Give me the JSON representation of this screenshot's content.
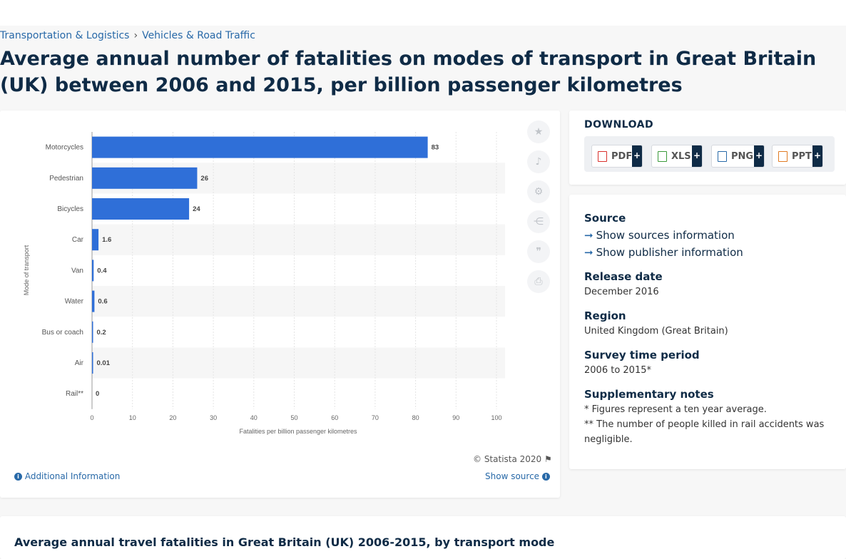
{
  "breadcrumb": {
    "item1": "Transportation & Logistics",
    "item2": "Vehicles & Road Traffic"
  },
  "page_title": "Average annual number of fatalities on modes of transport in Great Britain (UK) between 2006 and 2015, per billion passenger kilometres",
  "chart_data": {
    "type": "bar",
    "orientation": "horizontal",
    "categories": [
      "Motorcycles",
      "Pedestrian",
      "Bicycles",
      "Car",
      "Van",
      "Water",
      "Bus or coach",
      "Air",
      "Rail**"
    ],
    "values": [
      83,
      26,
      24,
      1.6,
      0.4,
      0.6,
      0.2,
      0.01,
      0
    ],
    "value_labels": [
      "83",
      "26",
      "24",
      "1.6",
      "0.4",
      "0.6",
      "0.2",
      "0.01",
      "0"
    ],
    "xlabel": "Fatalities per billion passenger kilometres",
    "ylabel": "Mode of transport",
    "xlim": [
      0,
      100
    ],
    "xticks": [
      0,
      10,
      20,
      30,
      40,
      50,
      60,
      70,
      80,
      90,
      100
    ],
    "grid": true,
    "bar_color": "#2f6fd8"
  },
  "chart_footer": {
    "copyright": "© Statista 2020",
    "additional_info": "Additional Information",
    "show_source": "Show source"
  },
  "tools": [
    "star-icon",
    "bell-icon",
    "gear-icon",
    "share-icon",
    "quote-icon",
    "print-icon"
  ],
  "download": {
    "title": "DOWNLOAD",
    "buttons": [
      {
        "label": "PDF",
        "color": "#d9302c"
      },
      {
        "label": "XLS",
        "color": "#3a9a3a"
      },
      {
        "label": "PNG",
        "color": "#2869a8"
      },
      {
        "label": "PPT",
        "color": "#e07b22"
      }
    ],
    "plus": "+"
  },
  "details": {
    "source_heading": "Source",
    "show_sources": "Show sources information",
    "show_publisher": "Show publisher information",
    "release_heading": "Release date",
    "release_value": "December 2016",
    "region_heading": "Region",
    "region_value": "United Kingdom (Great Britain)",
    "survey_heading": "Survey time period",
    "survey_value": "2006 to 2015*",
    "notes_heading": "Supplementary notes",
    "note1": "* Figures represent a ten year average.",
    "note2a": "** The number of people killed in rail accidents was",
    "note2b": "negligible."
  },
  "related": {
    "title": "Average annual travel fatalities in Great Britain (UK) 2006-2015, by transport mode"
  },
  "colors": {
    "accent": "#2869a8",
    "heading": "#0f2b46"
  }
}
